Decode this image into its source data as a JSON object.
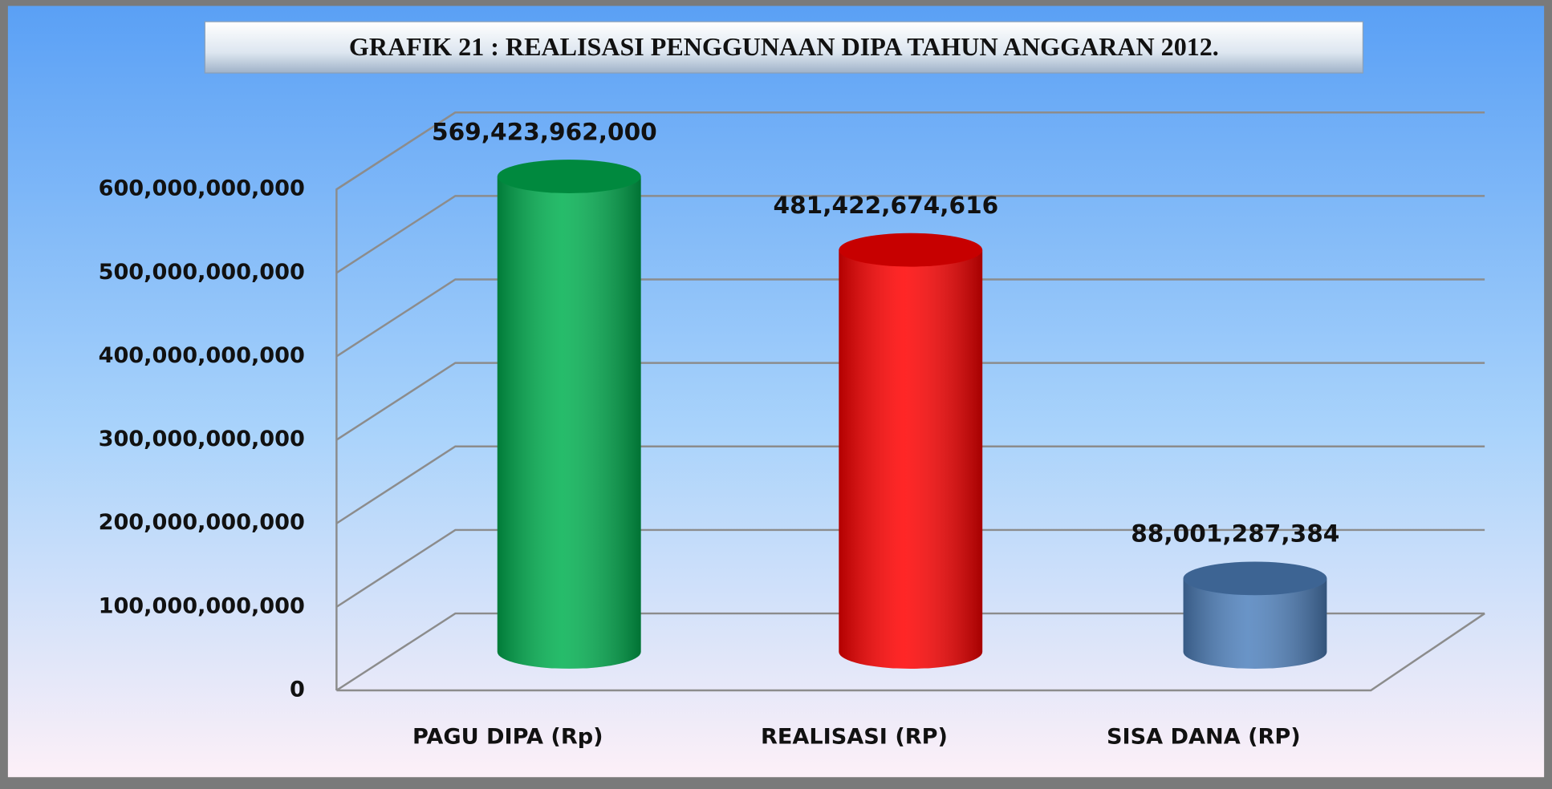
{
  "chart_data": {
    "type": "bar3d",
    "title": "GRAFIK 21 : REALISASI PENGGUNAAN DIPA TAHUN ANGGARAN 2012.",
    "categories": [
      "PAGU DIPA (Rp)",
      "REALISASI (RP)",
      "SISA DANA  (RP)"
    ],
    "values": [
      569423962000,
      481422674616,
      88001287384
    ],
    "value_labels": [
      "569,423,962,000",
      "481,422,674,616",
      "88,001,287,384"
    ],
    "colors": [
      "#00b050",
      "#ff0000",
      "#4f81bd"
    ],
    "ylim": [
      0,
      600000000000
    ],
    "yticks": [
      0,
      {
        "value": 100000000000,
        "label": "100,000,000,000"
      },
      {
        "value": 200000000000,
        "label": "200,000,000,000"
      },
      {
        "value": 300000000000,
        "label": "300,000,000,000"
      },
      {
        "value": 400000000000,
        "label": "400,000,000,000"
      },
      {
        "value": 500000000000,
        "label": "500,000,000,000"
      },
      {
        "value": 600000000000,
        "label": "600,000,000,000"
      }
    ],
    "grid": true
  }
}
